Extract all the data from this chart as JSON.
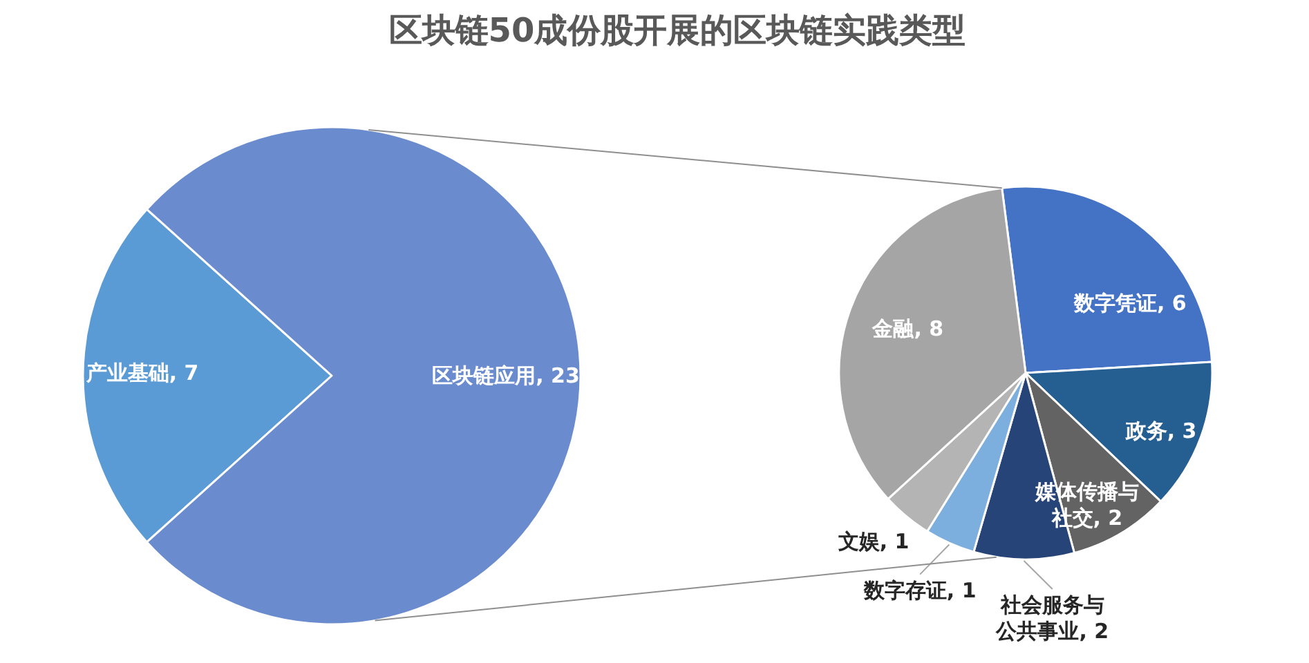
{
  "chart_data": [
    {
      "type": "pie",
      "title": "区块链50成份股开展的区块链实践类型",
      "categories": [
        "产业基础",
        "区块链应用"
      ],
      "values": [
        7,
        23
      ],
      "value_labels": [
        ", 7",
        ", 23"
      ],
      "colors": [
        "#5b9bd5",
        "#6a8ccf"
      ]
    },
    {
      "type": "pie",
      "categories": [
        "数字凭证",
        "政务",
        "媒体传播与社交",
        "社会服务与公共事业",
        "数字存证",
        "文娱",
        "金融"
      ],
      "values": [
        6,
        3,
        2,
        2,
        1,
        1,
        8
      ],
      "value_labels": [
        ", 6",
        ", 3",
        ", 2",
        ", 2",
        ", 1",
        ", 1",
        ", 8"
      ],
      "colors": [
        "#4472c4",
        "#255e91",
        "#636363",
        "#264478",
        "#7cafdd",
        "#b4b4b4",
        "#a5a5a5"
      ]
    }
  ]
}
